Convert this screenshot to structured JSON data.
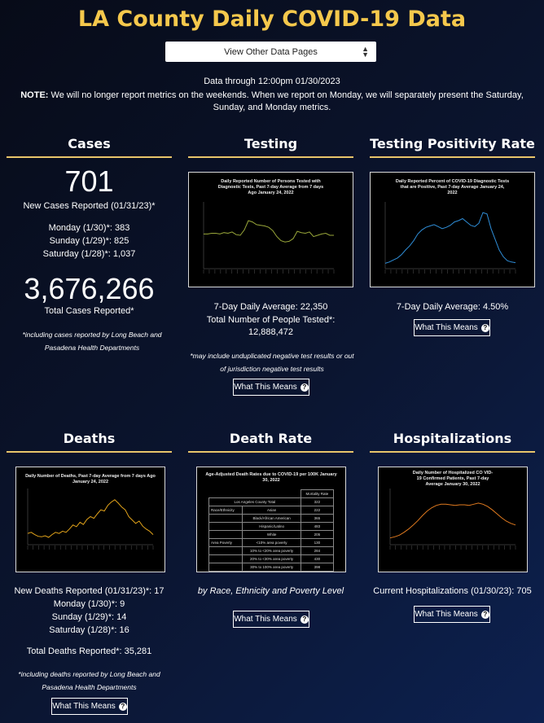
{
  "page": {
    "title": "LA County Daily COVID-19 Data",
    "select_label": "View Other Data Pages",
    "data_through": "Data through 12:00pm 01/30/2023",
    "note_label": "NOTE:",
    "note_text": " We will no longer report metrics on the weekends. When we report on Monday, we will separately present the Saturday, Sunday, and Monday metrics.",
    "button_label": "What This Means",
    "colors": {
      "accent": "#f5c84c",
      "rule": "#e8c56a"
    }
  },
  "cases": {
    "heading": "Cases",
    "new_cases": "701",
    "new_cases_label": "New Cases Reported (01/31/23)*",
    "monday": "Monday (1/30)*: 383",
    "sunday": "Sunday (1/29)*: 825",
    "saturday": "Saturday (1/28)*: 1,037",
    "total": "3,676,266",
    "total_label": "Total Cases Reported*",
    "footnote": "*including cases reported by Long Beach and Pasadena Health Departments"
  },
  "testing": {
    "heading": "Testing",
    "chart_title": "Daily Reported Number of Persons Tested with Diagnostic Tests, Past 7-day Average from 7 days Ago January 24, 2022",
    "avg": "7-Day Daily Average: 22,350",
    "total": "Total Number of People Tested*: 12,888,472",
    "footnote": "*may include unduplicated negative test results or out of jurisdiction negative test results"
  },
  "positivity": {
    "heading": "Testing Positivity Rate",
    "chart_title": "Daily Reported Percent of COVID-19 Diagnostic Tests that are Positive, Past 7-day Average January 24, 2022",
    "avg": "7-Day Daily Average: 4.50%"
  },
  "deaths": {
    "heading": "Deaths",
    "chart_title": "Daily Number of Deaths, Past 7-day Average from 7 days Ago January 24, 2022",
    "new": "New Deaths Reported (01/31/23)*: 17",
    "monday": "Monday (1/30)*: 9",
    "sunday": "Sunday (1/29)*: 14",
    "saturday": "Saturday (1/28)*: 16",
    "total": "Total Deaths Reported*: 35,281",
    "footnote": "*including deaths reported by Long Beach and Pasadena Health Departments"
  },
  "death_rate": {
    "heading": "Death Rate",
    "chart_title": "Age-Adjusted Death Rates due to COVID-19 per 100K January 30, 2022",
    "table_header": "Mortality Rate",
    "county_label": "Los Angeles County Total",
    "county_value": "322",
    "rows": [
      {
        "group": "Race/Ethnicity",
        "label": "Asian",
        "value": "222"
      },
      {
        "group": "",
        "label": "Black/African American",
        "value": "365"
      },
      {
        "group": "",
        "label": "Hispanic/Latino",
        "value": "483"
      },
      {
        "group": "",
        "label": "White",
        "value": "205"
      },
      {
        "group": "Area Poverty",
        "label": "<10% area poverty",
        "value": "130"
      },
      {
        "group": "",
        "label": "10% to <20% area poverty",
        "value": "284"
      },
      {
        "group": "",
        "label": "20% to <30% area poverty",
        "value": "430"
      },
      {
        "group": "",
        "label": "30% to 100% area poverty",
        "value": "398"
      }
    ],
    "caption": "by Race, Ethnicity and Poverty Level"
  },
  "hospitalizations": {
    "heading": "Hospitalizations",
    "chart_title": "Daily Number of Hospitalized CO VID-19 Confirmed Patients, Past 7-day Average January 30, 2022",
    "current": "Current Hospitalizations (01/30/23): 705"
  },
  "chart_data": [
    {
      "type": "line",
      "series": [
        {
          "values": [
            52,
            52,
            53,
            53,
            52,
            54,
            53,
            55,
            51,
            50,
            58,
            72,
            70,
            66,
            65,
            64,
            62,
            57,
            48,
            42,
            40,
            41,
            45,
            56,
            54,
            53,
            55,
            48,
            50,
            52,
            53,
            50,
            50
          ]
        }
      ]
    },
    {
      "type": "line",
      "series": [
        {
          "values": [
            8,
            10,
            13,
            16,
            21,
            28,
            34,
            42,
            52,
            58,
            62,
            64,
            66,
            63,
            60,
            62,
            65,
            70,
            72,
            75,
            70,
            65,
            63,
            68,
            84,
            82,
            60,
            44,
            28,
            18,
            12,
            10,
            9
          ]
        }
      ]
    },
    {
      "type": "line",
      "series": [
        {
          "values": [
            20,
            22,
            18,
            15,
            14,
            16,
            13,
            18,
            22,
            20,
            24,
            22,
            28,
            35,
            32,
            40,
            36,
            45,
            50,
            47,
            55,
            62,
            60,
            70,
            76,
            80,
            74,
            67,
            62,
            50,
            44,
            38,
            42,
            33,
            28,
            24,
            18
          ]
        }
      ]
    },
    {
      "type": "line",
      "series": [
        {
          "values": [
            12,
            14,
            17,
            22,
            28,
            35,
            43,
            52,
            60,
            66,
            70,
            72,
            72,
            71,
            70,
            71,
            71,
            70,
            72,
            74,
            72,
            68,
            62,
            55,
            48,
            42,
            38,
            35
          ]
        }
      ]
    }
  ]
}
